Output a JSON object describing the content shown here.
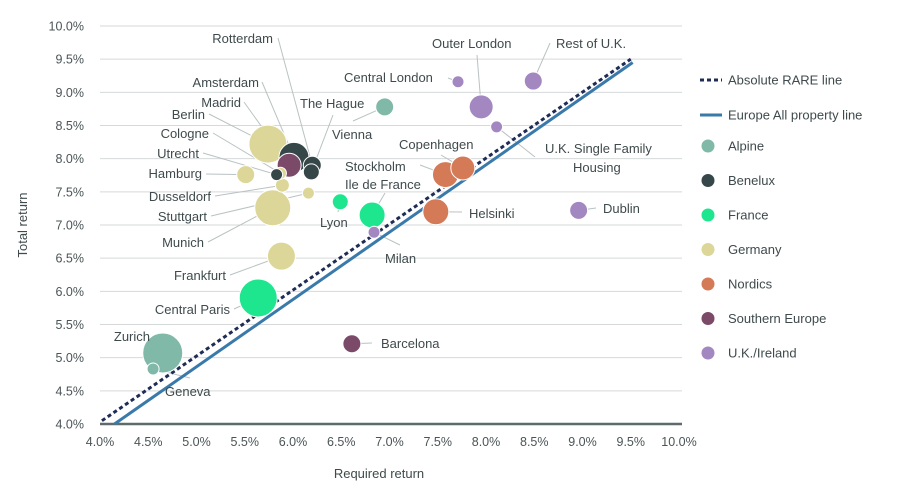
{
  "chart_data": {
    "type": "scatter",
    "title": "",
    "xlabel": "Required return",
    "ylabel": "Total return",
    "xlim": [
      4.0,
      10.0
    ],
    "ylim": [
      4.0,
      10.0
    ],
    "x_ticks": [
      "4.0%",
      "4.5%",
      "5.0%",
      "5.5%",
      "6.0%",
      "6.5%",
      "7.0%",
      "7.5%",
      "8.0%",
      "8.5%",
      "9.0%",
      "9.5%",
      "10.0%"
    ],
    "y_ticks": [
      "4.0%",
      "4.5%",
      "5.0%",
      "5.5%",
      "6.0%",
      "6.5%",
      "7.0%",
      "7.5%",
      "8.0%",
      "8.5%",
      "9.0%",
      "9.5%",
      "10.0%"
    ],
    "grid": "horizontal",
    "legend_position": "right",
    "lines": [
      {
        "name": "Absolute RARE line",
        "style": "dotted",
        "color": "#1f2c55",
        "x": [
          4.02,
          9.5
        ],
        "y": [
          4.05,
          9.5
        ]
      },
      {
        "name": "Europe All property line",
        "style": "solid",
        "color": "#3a7aaa",
        "x": [
          4.15,
          9.52
        ],
        "y": [
          4.0,
          9.45
        ]
      }
    ],
    "groups": [
      {
        "name": "Alpine",
        "color": "#80b9a8"
      },
      {
        "name": "Benelux",
        "color": "#36474a"
      },
      {
        "name": "France",
        "color": "#1de68f"
      },
      {
        "name": "Germany",
        "color": "#dcd798"
      },
      {
        "name": "Nordics",
        "color": "#d47a57"
      },
      {
        "name": "Southern Europe",
        "color": "#7b4a68"
      },
      {
        "name": "U.K./Ireland",
        "color": "#a387c0"
      }
    ],
    "points": [
      {
        "label": "Berlin",
        "group": "Germany",
        "x": 5.74,
        "y": 8.22,
        "size": 19
      },
      {
        "label": "Munich",
        "group": "Germany",
        "x": 5.79,
        "y": 7.26,
        "size": 18
      },
      {
        "label": "Frankfurt",
        "group": "Germany",
        "x": 5.88,
        "y": 6.53,
        "size": 14
      },
      {
        "label": "Hamburg",
        "group": "Germany",
        "x": 5.51,
        "y": 7.76,
        "size": 9
      },
      {
        "label": "Dusseldorf",
        "group": "Germany",
        "x": 5.89,
        "y": 7.6,
        "size": 7
      },
      {
        "label": "Stuttgart",
        "group": "Germany",
        "x": 6.16,
        "y": 7.48,
        "size": 6
      },
      {
        "label": "Cologne",
        "group": "Germany",
        "x": 5.87,
        "y": 7.78,
        "size": 6
      },
      {
        "label": "Amsterdam",
        "group": "Benelux",
        "x": 6.01,
        "y": 8.02,
        "size": 15
      },
      {
        "label": "Rotterdam",
        "group": "Benelux",
        "x": 6.2,
        "y": 7.9,
        "size": 9
      },
      {
        "label": "The Hague",
        "group": "Benelux",
        "x": 6.19,
        "y": 7.8,
        "size": 8
      },
      {
        "label": "Utrecht",
        "group": "Benelux",
        "x": 5.83,
        "y": 7.76,
        "size": 6
      },
      {
        "label": "Madrid",
        "group": "Southern Europe",
        "x": 5.96,
        "y": 7.9,
        "size": 12
      },
      {
        "label": "Barcelona",
        "group": "Southern Europe",
        "x": 6.61,
        "y": 5.21,
        "size": 9
      },
      {
        "label": "Milan",
        "group": "U.K./Ireland",
        "x": 6.84,
        "y": 6.89,
        "size": 6
      },
      {
        "label": "Vienna",
        "group": "Alpine",
        "x": 6.95,
        "y": 8.78,
        "size": 9
      },
      {
        "label": "Zurich",
        "group": "Alpine",
        "x": 4.65,
        "y": 5.07,
        "size": 20
      },
      {
        "label": "Geneva",
        "group": "Alpine",
        "x": 4.55,
        "y": 4.83,
        "size": 6
      },
      {
        "label": "Central Paris",
        "group": "France",
        "x": 5.64,
        "y": 5.9,
        "size": 19
      },
      {
        "label": "Ile de France",
        "group": "France",
        "x": 6.82,
        "y": 7.15,
        "size": 13
      },
      {
        "label": "Lyon",
        "group": "France",
        "x": 6.49,
        "y": 7.35,
        "size": 8
      },
      {
        "label": "Stockholm",
        "group": "Nordics",
        "x": 7.58,
        "y": 7.76,
        "size": 13
      },
      {
        "label": "Copenhagen",
        "group": "Nordics",
        "x": 7.76,
        "y": 7.86,
        "size": 12
      },
      {
        "label": "Helsinki",
        "group": "Nordics",
        "x": 7.48,
        "y": 7.2,
        "size": 13
      },
      {
        "label": "Central London",
        "group": "U.K./Ireland",
        "x": 7.71,
        "y": 9.16,
        "size": 6
      },
      {
        "label": "Outer London",
        "group": "U.K./Ireland",
        "x": 7.95,
        "y": 8.78,
        "size": 12
      },
      {
        "label": "Rest of U.K.",
        "group": "U.K./Ireland",
        "x": 8.49,
        "y": 9.17,
        "size": 9
      },
      {
        "label": "U.K. Single Family Housing",
        "group": "U.K./Ireland",
        "x": 8.11,
        "y": 8.48,
        "size": 6
      },
      {
        "label": "Dublin",
        "group": "U.K./Ireland",
        "x": 8.96,
        "y": 7.22,
        "size": 9
      }
    ]
  }
}
